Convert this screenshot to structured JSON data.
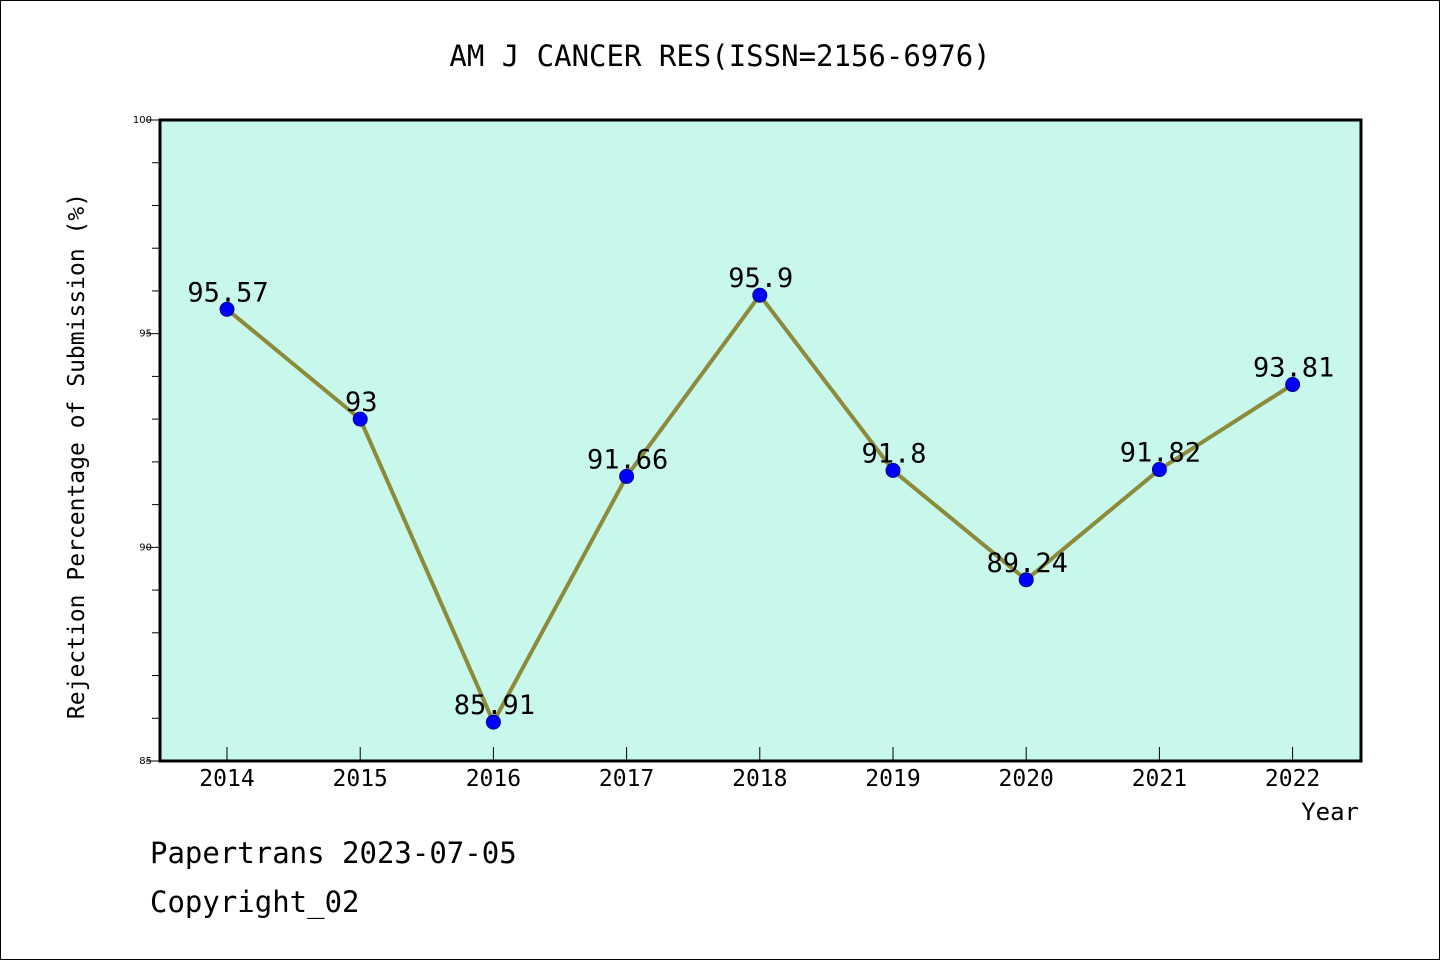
{
  "chart_data": {
    "type": "line",
    "title": "AM J CANCER RES(ISSN=2156-6976)",
    "xlabel": "Year",
    "ylabel": "Rejection Percentage of Submission (%)",
    "x": [
      "2014",
      "2015",
      "2016",
      "2017",
      "2018",
      "2019",
      "2020",
      "2021",
      "2022"
    ],
    "values": [
      95.57,
      93,
      85.91,
      91.66,
      95.9,
      91.8,
      89.24,
      91.82,
      93.81
    ],
    "data_labels": [
      "95.57",
      "93",
      "85.91",
      "91.66",
      "95.9",
      "91.8",
      "89.24",
      "91.82",
      "93.81"
    ],
    "ylim": [
      85,
      100
    ],
    "yticks": [
      "85",
      "90",
      "95",
      "100"
    ],
    "grid": false,
    "colors": {
      "plot_background": "#c8f8ec",
      "line": "#8b8b3a",
      "marker": "#0000ff"
    }
  },
  "footer": {
    "source": "Papertrans 2023-07-05",
    "copyright": "Copyright_02"
  }
}
